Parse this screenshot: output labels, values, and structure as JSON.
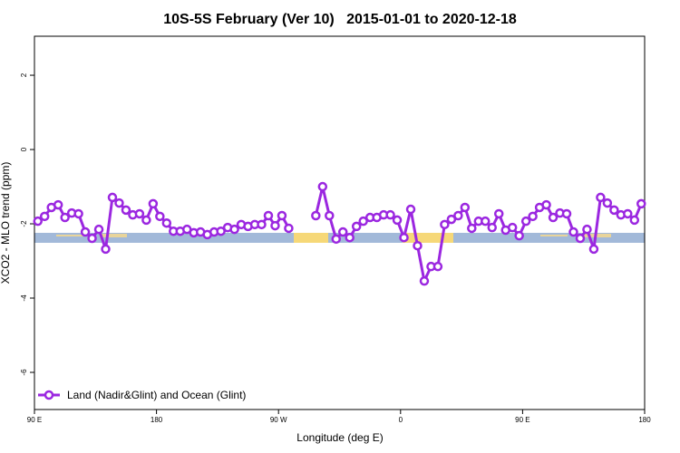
{
  "chart_data": {
    "type": "line",
    "title": "10S-5S February (Ver 10)   2015-01-01 to 2020-12-18",
    "xlabel": "Longitude (deg E)",
    "ylabel": "XCO2 - MLO trend (ppm)",
    "xlim": [
      90,
      540
    ],
    "ylim": [
      -7,
      3.05
    ],
    "xticks": [
      {
        "value": 90,
        "label": "90 E"
      },
      180,
      {
        "value": 270,
        "label": "90 W"
      },
      {
        "value": 360,
        "label": "0"
      },
      {
        "value": 450,
        "label": "90 E"
      },
      {
        "value": 540,
        "label": "180"
      }
    ],
    "yticks": [
      -6,
      -4,
      -2,
      0,
      2
    ],
    "legend": "bottom-left",
    "x": [
      92.5,
      97.5,
      102.5,
      107.5,
      112.5,
      117.5,
      122.5,
      127.5,
      132.5,
      137.5,
      142.5,
      147.5,
      152.5,
      157.5,
      162.5,
      167.5,
      172.5,
      177.5,
      182.5,
      187.5,
      192.5,
      197.5,
      202.5,
      207.5,
      212.5,
      217.5,
      222.5,
      227.5,
      232.5,
      237.5,
      242.5,
      247.5,
      252.5,
      257.5,
      262.5,
      267.5,
      272.5,
      277.5,
      282.5,
      287.5,
      292.5,
      297.5,
      302.5,
      307.5,
      312.5,
      317.5,
      322.5,
      327.5,
      332.5,
      337.5,
      342.5,
      347.5,
      352.5,
      357.5,
      362.5,
      367.5,
      372.5,
      377.5,
      382.5,
      387.5,
      392.5,
      397.5,
      402.5,
      407.5,
      412.5,
      417.5,
      422.5,
      427.5,
      432.5,
      437.5,
      442.5,
      447.5,
      452.5,
      457.5,
      462.5,
      467.5,
      472.5,
      477.5,
      482.5,
      487.5,
      492.5,
      497.5,
      502.5,
      507.5,
      512.5,
      517.5,
      522.5,
      527.5,
      532.5,
      537.5
    ],
    "series": [
      {
        "name": "Land (Nadir&Glint) and Ocean (Glint)",
        "color": "#9b27e0",
        "values": [
          -1.93,
          -1.8,
          -1.56,
          -1.49,
          -1.83,
          -1.71,
          -1.73,
          -2.22,
          -2.39,
          -2.15,
          -2.68,
          -1.29,
          -1.44,
          -1.63,
          -1.76,
          -1.73,
          -1.9,
          -1.46,
          -1.8,
          -1.98,
          -2.2,
          -2.2,
          -2.15,
          -2.24,
          -2.22,
          -2.29,
          -2.22,
          -2.2,
          -2.1,
          -2.15,
          -2.02,
          -2.07,
          -2.02,
          -2.02,
          -1.78,
          -2.05,
          -1.78,
          -2.12,
          null,
          null,
          null,
          -1.78,
          -1.0,
          -1.78,
          -2.41,
          -2.22,
          -2.37,
          -2.07,
          -1.93,
          -1.83,
          -1.83,
          -1.76,
          -1.76,
          -1.9,
          -2.37,
          -1.61,
          -2.59,
          -3.54,
          -3.15,
          -3.15,
          -2.02,
          -1.88,
          -1.78,
          -1.56,
          -2.12,
          -1.93,
          -1.93,
          -2.1,
          -1.73,
          -2.17,
          -2.1,
          -2.32,
          -1.93,
          -1.8,
          -1.56,
          -1.49,
          -1.83,
          -1.71,
          -1.73,
          -2.22,
          -2.39,
          -2.15,
          -2.68,
          -1.29,
          -1.44,
          -1.63,
          -1.76,
          -1.73,
          -1.9,
          -1.46
        ]
      }
    ]
  }
}
